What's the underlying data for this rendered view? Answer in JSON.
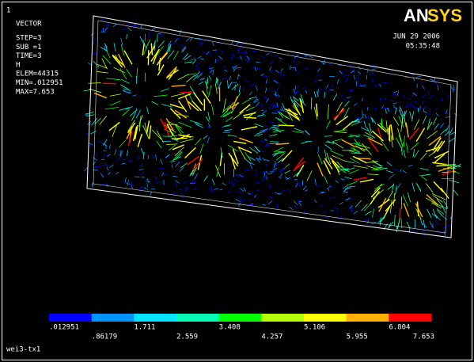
{
  "header": {
    "window": "1",
    "plot_type": "VECTOR",
    "info": [
      "STEP=3",
      "SUB =1",
      "TIME=3",
      "H",
      "ELEM=44315",
      "MIN=.012951",
      "MAX=7.653"
    ]
  },
  "logo": {
    "an": "AN",
    "sys": "SYS"
  },
  "timestamp": {
    "date": "JUN 29 2006",
    "time": "05:35:48"
  },
  "legend": {
    "colors": [
      "#0000ff",
      "#0094ff",
      "#00e5ff",
      "#00ffb4",
      "#00ff00",
      "#b4ff00",
      "#ffff00",
      "#ffb000",
      "#ff0000"
    ],
    "labels": [
      ".012951",
      ".86179",
      "1.711",
      "2.559",
      "3.408",
      "4.257",
      "5.106",
      "5.955",
      "6.804",
      "7.653"
    ]
  },
  "footer": "wei3-tx1"
}
